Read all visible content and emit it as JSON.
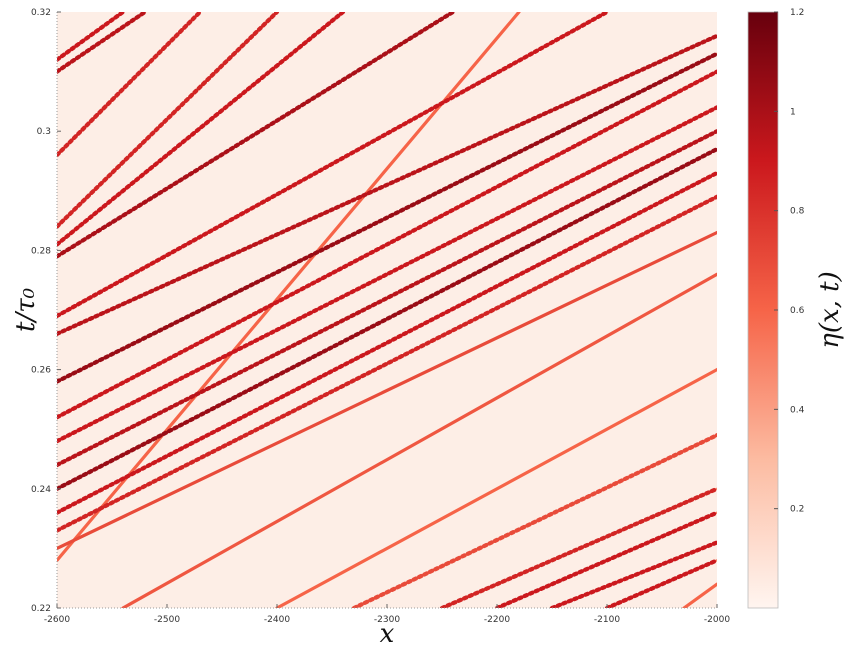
{
  "colors": {
    "background": "#fdeee6",
    "stripe_light": "#f07a5c",
    "stripe_mid": "#e0452e",
    "stripe_dark": "#8b0d12",
    "colorbar_high": "#67000d",
    "colorbar_low": "#fff5f0"
  },
  "chart_data": {
    "type": "heatmap",
    "title": "",
    "xlabel": "x",
    "ylabel": "t/τ₀",
    "colorbar_label": "η(x, t)",
    "xlim": [
      -2600,
      -2000
    ],
    "ylim": [
      0.22,
      0.32
    ],
    "x_ticks": [
      -2600,
      -2500,
      -2400,
      -2300,
      -2200,
      -2100,
      -2000
    ],
    "x_tick_labels": [
      "-2600",
      "-2500",
      "-2400",
      "-2300",
      "-2200",
      "-2100",
      "-2000"
    ],
    "y_ticks": [
      0.22,
      0.24,
      0.26,
      0.28,
      0.3,
      0.32
    ],
    "y_tick_labels": [
      "0.22",
      "0.24",
      "0.26",
      "0.28",
      "0.3",
      "0.32"
    ],
    "colorbar_range": [
      0,
      1.2
    ],
    "colorbar_ticks": [
      0.2,
      0.4,
      0.6,
      0.8,
      1,
      1.2
    ],
    "colorbar_tick_labels": [
      "0.2",
      "0.4",
      "0.6",
      "0.8",
      "1",
      "1.2"
    ],
    "grid": false,
    "trajectories": [
      {
        "x": [
          -2600,
          -2540
        ],
        "t": [
          0.312,
          0.32
        ],
        "amplitude": 0.9,
        "dotted": true
      },
      {
        "x": [
          -2600,
          -2520
        ],
        "t": [
          0.31,
          0.32
        ],
        "amplitude": 0.95,
        "dotted": true
      },
      {
        "x": [
          -2600,
          -2470
        ],
        "t": [
          0.296,
          0.32
        ],
        "amplitude": 0.85,
        "dotted": true
      },
      {
        "x": [
          -2600,
          -2400
        ],
        "t": [
          0.284,
          0.32
        ],
        "amplitude": 0.85,
        "dotted": true
      },
      {
        "x": [
          -2600,
          -2340
        ],
        "t": [
          0.281,
          0.32
        ],
        "amplitude": 0.9,
        "dotted": true
      },
      {
        "x": [
          -2600,
          -2240
        ],
        "t": [
          0.279,
          0.32
        ],
        "amplitude": 1.0,
        "dotted": true
      },
      {
        "x": [
          -2600,
          -2180
        ],
        "t": [
          0.228,
          0.32
        ],
        "amplitude": 0.6,
        "dotted": false
      },
      {
        "x": [
          -2600,
          -2100
        ],
        "t": [
          0.269,
          0.32
        ],
        "amplitude": 0.9,
        "dotted": true
      },
      {
        "x": [
          -2600,
          -2000
        ],
        "t": [
          0.266,
          0.316
        ],
        "amplitude": 0.95,
        "dotted": true
      },
      {
        "x": [
          -2600,
          -2000
        ],
        "t": [
          0.258,
          0.313
        ],
        "amplitude": 1.05,
        "dotted": true
      },
      {
        "x": [
          -2600,
          -2000
        ],
        "t": [
          0.252,
          0.31
        ],
        "amplitude": 0.9,
        "dotted": true
      },
      {
        "x": [
          -2600,
          -2000
        ],
        "t": [
          0.248,
          0.304
        ],
        "amplitude": 0.9,
        "dotted": true
      },
      {
        "x": [
          -2600,
          -2000
        ],
        "t": [
          0.244,
          0.3
        ],
        "amplitude": 0.95,
        "dotted": true
      },
      {
        "x": [
          -2600,
          -2000
        ],
        "t": [
          0.24,
          0.297
        ],
        "amplitude": 1.05,
        "dotted": true
      },
      {
        "x": [
          -2600,
          -2000
        ],
        "t": [
          0.236,
          0.293
        ],
        "amplitude": 0.9,
        "dotted": true
      },
      {
        "x": [
          -2600,
          -2000
        ],
        "t": [
          0.233,
          0.289
        ],
        "amplitude": 0.85,
        "dotted": true
      },
      {
        "x": [
          -2600,
          -2000
        ],
        "t": [
          0.23,
          0.283
        ],
        "amplitude": 0.7,
        "dotted": false
      },
      {
        "x": [
          -2540,
          -2000
        ],
        "t": [
          0.22,
          0.276
        ],
        "amplitude": 0.65,
        "dotted": false
      },
      {
        "x": [
          -2400,
          -2000
        ],
        "t": [
          0.22,
          0.26
        ],
        "amplitude": 0.6,
        "dotted": false
      },
      {
        "x": [
          -2330,
          -2000
        ],
        "t": [
          0.22,
          0.249
        ],
        "amplitude": 0.7,
        "dotted": true
      },
      {
        "x": [
          -2250,
          -2000
        ],
        "t": [
          0.22,
          0.24
        ],
        "amplitude": 0.85,
        "dotted": true
      },
      {
        "x": [
          -2200,
          -2000
        ],
        "t": [
          0.22,
          0.236
        ],
        "amplitude": 0.9,
        "dotted": true
      },
      {
        "x": [
          -2150,
          -2000
        ],
        "t": [
          0.22,
          0.231
        ],
        "amplitude": 0.9,
        "dotted": true
      },
      {
        "x": [
          -2100,
          -2000
        ],
        "t": [
          0.22,
          0.228
        ],
        "amplitude": 0.9,
        "dotted": true
      },
      {
        "x": [
          -2030,
          -2000
        ],
        "t": [
          0.22,
          0.224
        ],
        "amplitude": 0.6,
        "dotted": false
      }
    ]
  }
}
